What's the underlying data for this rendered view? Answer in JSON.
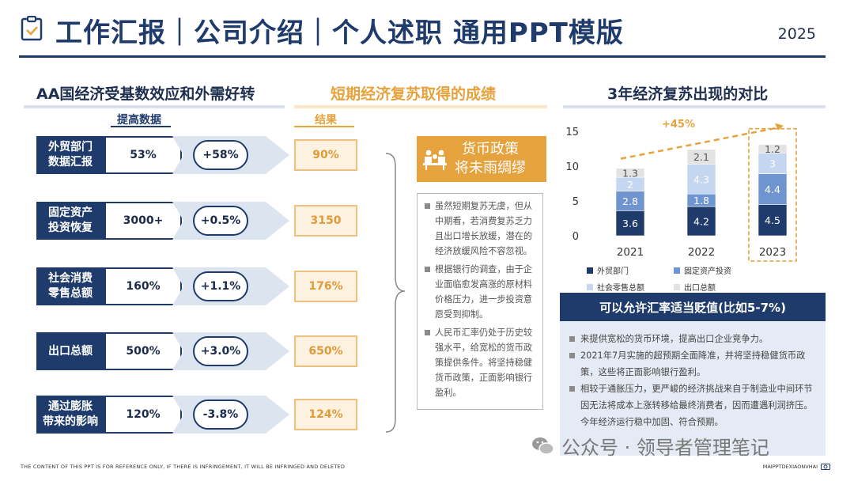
{
  "header": {
    "title": "工作汇报｜公司介绍｜个人述职 通用PPT模版",
    "year": "2025"
  },
  "left": {
    "title": "AA国经济受基数效应和外需好转",
    "sub_label": "提高数据",
    "rows": [
      {
        "label": "外贸部门\n数据汇报",
        "value": "53%",
        "change": "+58%",
        "result": "90%"
      },
      {
        "label": "固定资产\n投资恢复",
        "value": "3000+",
        "change": "+0.5%",
        "result": "3150"
      },
      {
        "label": "社会消费\n零售总额",
        "value": "160%",
        "change": "+1.1%",
        "result": "176%"
      },
      {
        "label": "出口总额",
        "value": "500%",
        "change": "+3.0%",
        "result": "650%"
      },
      {
        "label": "通过膨胀\n带来的影响",
        "value": "120%",
        "change": "-3.8%",
        "result": "124%"
      }
    ]
  },
  "middle": {
    "title": "短期经济复苏取得的成绩",
    "sub_label": "结果",
    "policy_title": "货币政策\n将未雨绸缪",
    "policy_items": [
      "虽然短期复苏无虞，但从中期看，若消费复苏乏力且出口增长放缓，潜在的经济放缓风险不容忽视。",
      "根据银行的调查，由于企业面临愈发高涨的原材料价格压力，进一步投资意愿受到抑制。",
      "人民币汇率仍处于历史较强水平，给宽松的货币政策提供条件。将坚持稳健货币政策，正面影响银行盈利。"
    ]
  },
  "right": {
    "title": "3年经济复苏出现的对比",
    "growth_label": "+45%",
    "rate_title": "可以允许汇率适当贬值(比如5-7%)",
    "rate_items": [
      "来提供宽松的货币环境，提高出口企业竞争力。",
      "2021年7月实施的超预期全面降准，并将坚持稳健货币政策，这些将正面影响银行盈利。",
      "相较于通胀压力，更严峻的经济挑战来自于制造业中间环节因无法将成本上涨转移给最终消费者，因而遭遇利润挤压。今年经济运行稳中加固、符合预期。"
    ]
  },
  "chart_data": {
    "type": "bar",
    "stacked": true,
    "categories": [
      "2021",
      "2022",
      "2023"
    ],
    "ylim": [
      0,
      15
    ],
    "yticks": [
      0,
      5,
      10,
      15
    ],
    "series": [
      {
        "name": "外贸部门",
        "values": [
          3.6,
          4.2,
          4.5
        ],
        "color": "#1f3b6b",
        "label_color": "#ffffff"
      },
      {
        "name": "固定资产投资",
        "values": [
          2.8,
          1.8,
          4.4
        ],
        "color": "#6f95d0",
        "label_color": "#ffffff"
      },
      {
        "name": "社会零售总额",
        "values": [
          2,
          4.3,
          3
        ],
        "color": "#c4d6f0",
        "label_color": "#ffffff"
      },
      {
        "name": "出口总额",
        "values": [
          1.3,
          2.1,
          1.2
        ],
        "color": "#e3e3e3",
        "label_color": "#555555"
      }
    ],
    "legend_position": "bottom",
    "highlight_category": "2023"
  },
  "footer": {
    "left": "THE CONTENT OF THIS PPT IS FOR REFERENCE ONLY, IF THERE IS INFRINGEMENT, IT WILL BE INFRINGED AND DELETED",
    "right": "MAIPPTDEXIAONVHAI",
    "watermark": "公众号 · 领导者管理笔记"
  },
  "colors": {
    "navy": "#1f3b6b",
    "orange": "#e6a23c",
    "light_orange": "#fdf2e0"
  }
}
